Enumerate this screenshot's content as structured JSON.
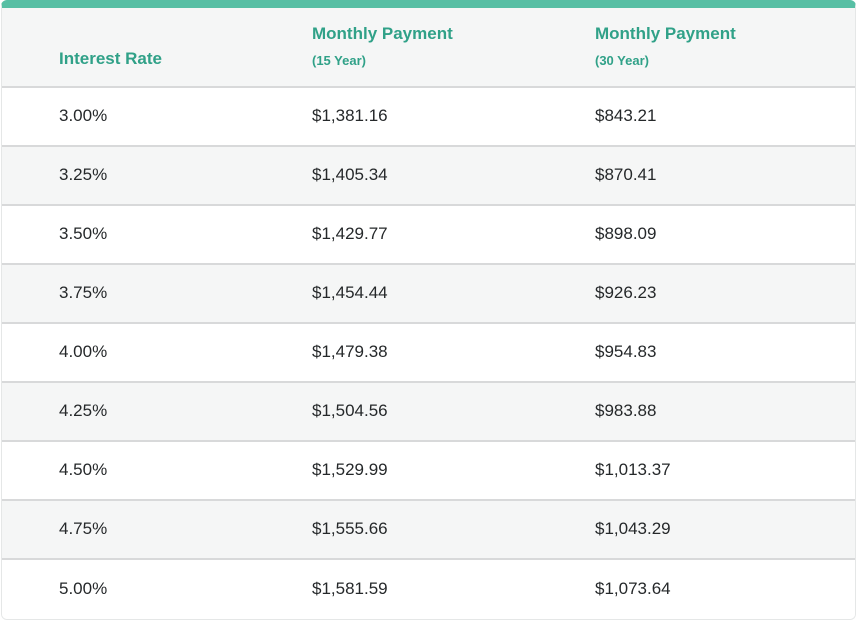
{
  "colors": {
    "accent_bar": "#57bfa4",
    "header_text": "#30a188",
    "body_text": "#25282a",
    "stripe_background": "#f5f6f6",
    "row_background": "#ffffff",
    "divider": "#d8d9da",
    "outer_border": "#e5e7e7"
  },
  "chart_data": {
    "type": "table",
    "title": "",
    "columns": [
      {
        "label": "Interest Rate",
        "sublabel": ""
      },
      {
        "label": "Monthly Payment",
        "sublabel": "(15 Year)"
      },
      {
        "label": "Monthly Payment",
        "sublabel": "(30 Year)"
      }
    ],
    "rows": [
      [
        "3.00%",
        "$1,381.16",
        "$843.21"
      ],
      [
        "3.25%",
        "$1,405.34",
        "$870.41"
      ],
      [
        "3.50%",
        "$1,429.77",
        "$898.09"
      ],
      [
        "3.75%",
        "$1,454.44",
        "$926.23"
      ],
      [
        "4.00%",
        "$1,479.38",
        "$954.83"
      ],
      [
        "4.25%",
        "$1,504.56",
        "$983.88"
      ],
      [
        "4.50%",
        "$1,529.99",
        "$1,013.37"
      ],
      [
        "4.75%",
        "$1,555.66",
        "$1,043.29"
      ],
      [
        "5.00%",
        "$1,581.59",
        "$1,073.64"
      ]
    ],
    "numeric": {
      "interest_rate_pct": [
        3.0,
        3.25,
        3.5,
        3.75,
        4.0,
        4.25,
        4.5,
        4.75,
        5.0
      ],
      "monthly_payment_15yr": [
        1381.16,
        1405.34,
        1429.77,
        1454.44,
        1479.38,
        1504.56,
        1529.99,
        1555.66,
        1581.59
      ],
      "monthly_payment_30yr": [
        843.21,
        870.41,
        898.09,
        926.23,
        954.83,
        983.88,
        1013.37,
        1043.29,
        1073.64
      ]
    },
    "layout": {
      "striped": true,
      "first_data_row_background": "white",
      "header_alignment": "bottom"
    }
  }
}
